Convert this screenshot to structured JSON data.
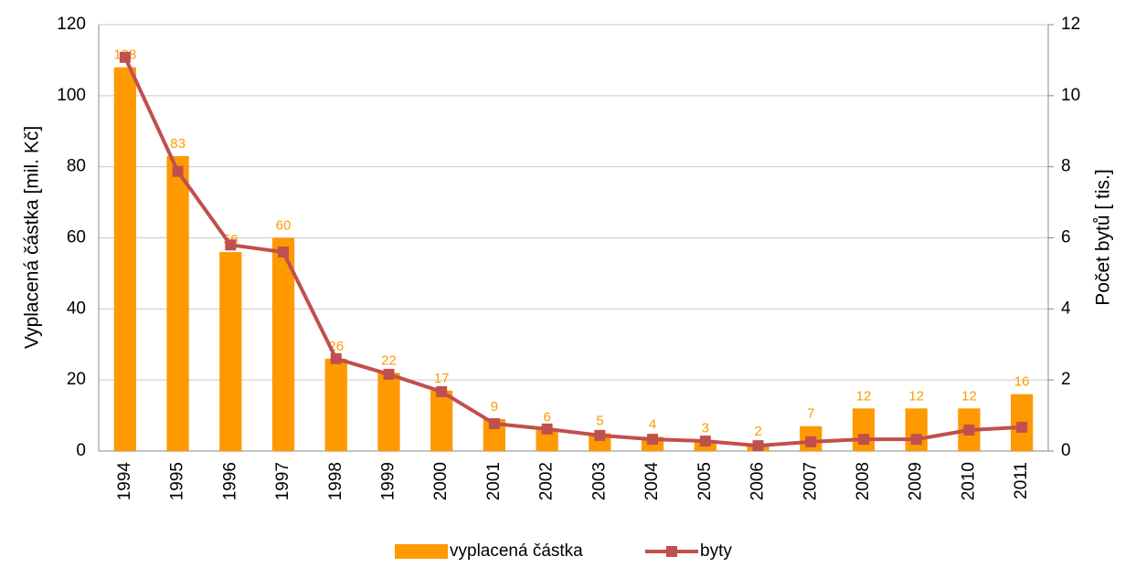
{
  "chart_data": {
    "type": "bar-line",
    "y_label": "Vyplacená částka  [mil. Kč]",
    "y2_label": "Počet bytů  [ tis.]",
    "categories": [
      "1994",
      "1995",
      "1996",
      "1997",
      "1998",
      "1999",
      "2000",
      "2001",
      "2002",
      "2003",
      "2004",
      "2005",
      "2006",
      "2007",
      "2008",
      "2009",
      "2010",
      "2011"
    ],
    "series": [
      {
        "name": "vyplacená částka",
        "color": "#ff9900",
        "type": "bar",
        "values": [
          108,
          83,
          56,
          60,
          26,
          22,
          17,
          9,
          6,
          5,
          4,
          3,
          2,
          7,
          12,
          12,
          12,
          16
        ]
      },
      {
        "name": "byty",
        "color": "#c0504d",
        "type": "line",
        "axis": "y2",
        "values": [
          11.08,
          7.87,
          5.8,
          5.6,
          2.6,
          2.16,
          1.67,
          0.77,
          0.62,
          0.44,
          0.33,
          0.28,
          0.15,
          0.26,
          0.33,
          0.33,
          0.59,
          0.67
        ]
      }
    ],
    "ylim": [
      0,
      120
    ],
    "yticks": [
      0,
      20,
      40,
      60,
      80,
      100,
      120
    ],
    "y2lim": [
      0,
      12
    ],
    "y2ticks": [
      0,
      2,
      4,
      6,
      8,
      10,
      12
    ],
    "grid": true,
    "legend": "bottom"
  }
}
